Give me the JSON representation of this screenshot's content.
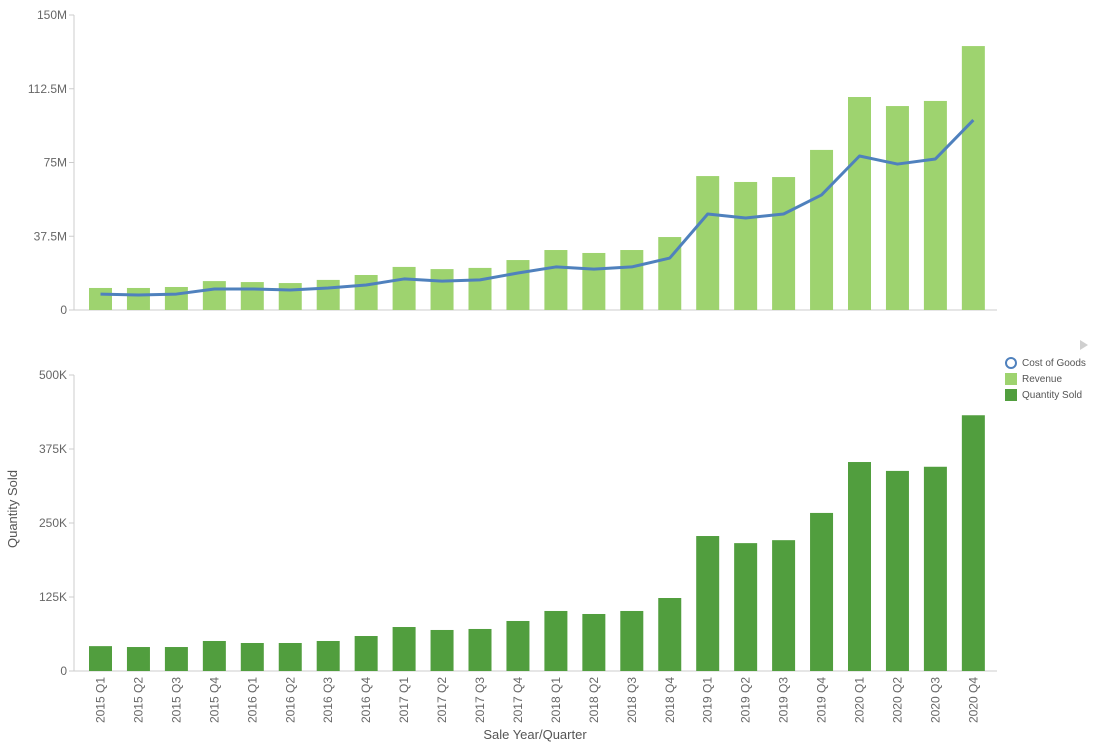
{
  "chart_data": [
    {
      "type": "bar+line",
      "title": "",
      "xlabel": "",
      "ylabel": "",
      "ylim": [
        0,
        150
      ],
      "y_unit": "M",
      "y_ticks": [
        "0",
        "37.5M",
        "75M",
        "112.5M",
        "150M"
      ],
      "y_tick_values": [
        0,
        37.5,
        75,
        112.5,
        150
      ],
      "categories": [
        "2015 Q1",
        "2015 Q2",
        "2015 Q3",
        "2015 Q4",
        "2016 Q1",
        "2016 Q2",
        "2016 Q3",
        "2016 Q4",
        "2017 Q1",
        "2017 Q2",
        "2017 Q3",
        "2017 Q4",
        "2018 Q1",
        "2018 Q2",
        "2018 Q3",
        "2018 Q4",
        "2019 Q1",
        "2019 Q2",
        "2019 Q3",
        "2019 Q4",
        "2020 Q1",
        "2020 Q2",
        "2020 Q3",
        "2020 Q4"
      ],
      "series": [
        {
          "name": "Revenue",
          "type": "bar",
          "color": "#9ed36f",
          "values": [
            11.2,
            11.2,
            11.7,
            14.7,
            14.2,
            13.7,
            15.3,
            17.8,
            21.9,
            20.8,
            21.4,
            25.4,
            30.5,
            29.0,
            30.5,
            37.1,
            68.1,
            65.1,
            67.6,
            81.4,
            108.3,
            103.7,
            106.3,
            134.2
          ]
        },
        {
          "name": "Cost of Goods",
          "type": "line",
          "color": "#4f81bd",
          "values": [
            8.1,
            7.6,
            8.1,
            10.7,
            10.7,
            10.2,
            11.2,
            12.7,
            15.8,
            14.7,
            15.3,
            18.8,
            21.9,
            20.8,
            21.9,
            26.4,
            48.8,
            46.8,
            48.8,
            58.5,
            78.3,
            74.2,
            76.8,
            96.6
          ]
        }
      ],
      "grid": false
    },
    {
      "type": "bar",
      "title": "",
      "xlabel": "Sale Year/Quarter",
      "ylabel": "Quantity Sold",
      "ylim": [
        0,
        500
      ],
      "y_unit": "K",
      "y_ticks": [
        "0",
        "125K",
        "250K",
        "375K",
        "500K"
      ],
      "y_tick_values": [
        0,
        125,
        250,
        375,
        500
      ],
      "categories": [
        "2015 Q1",
        "2015 Q2",
        "2015 Q3",
        "2015 Q4",
        "2016 Q1",
        "2016 Q2",
        "2016 Q3",
        "2016 Q4",
        "2017 Q1",
        "2017 Q2",
        "2017 Q3",
        "2017 Q4",
        "2018 Q1",
        "2018 Q2",
        "2018 Q3",
        "2018 Q4",
        "2019 Q1",
        "2019 Q2",
        "2019 Q3",
        "2019 Q4",
        "2020 Q1",
        "2020 Q2",
        "2020 Q3",
        "2020 Q4"
      ],
      "series": [
        {
          "name": "Quantity Sold",
          "type": "bar",
          "color": "#519e3e",
          "values": [
            42,
            40.5,
            40.5,
            50.7,
            47.3,
            47.3,
            50.7,
            59.1,
            74.3,
            69.3,
            71,
            84.5,
            101.4,
            96.3,
            101.4,
            123.3,
            228,
            216,
            221,
            267,
            353,
            338,
            345,
            432
          ]
        }
      ],
      "grid": false,
      "legend_position": "right"
    }
  ],
  "legend": {
    "items": [
      {
        "label": "Cost of Goods",
        "shape": "circle",
        "color": "#4f81bd"
      },
      {
        "label": "Revenue",
        "shape": "square",
        "color": "#9ed36f"
      },
      {
        "label": "Quantity Sold",
        "shape": "square",
        "color": "#519e3e"
      }
    ],
    "expand_icon": "triangle-right-icon"
  },
  "axes": {
    "x_title": "Sale Year/Quarter",
    "y_title_bottom": "Quantity Sold"
  },
  "colors": {
    "axis": "#cccccc",
    "tick_text": "#666666"
  }
}
